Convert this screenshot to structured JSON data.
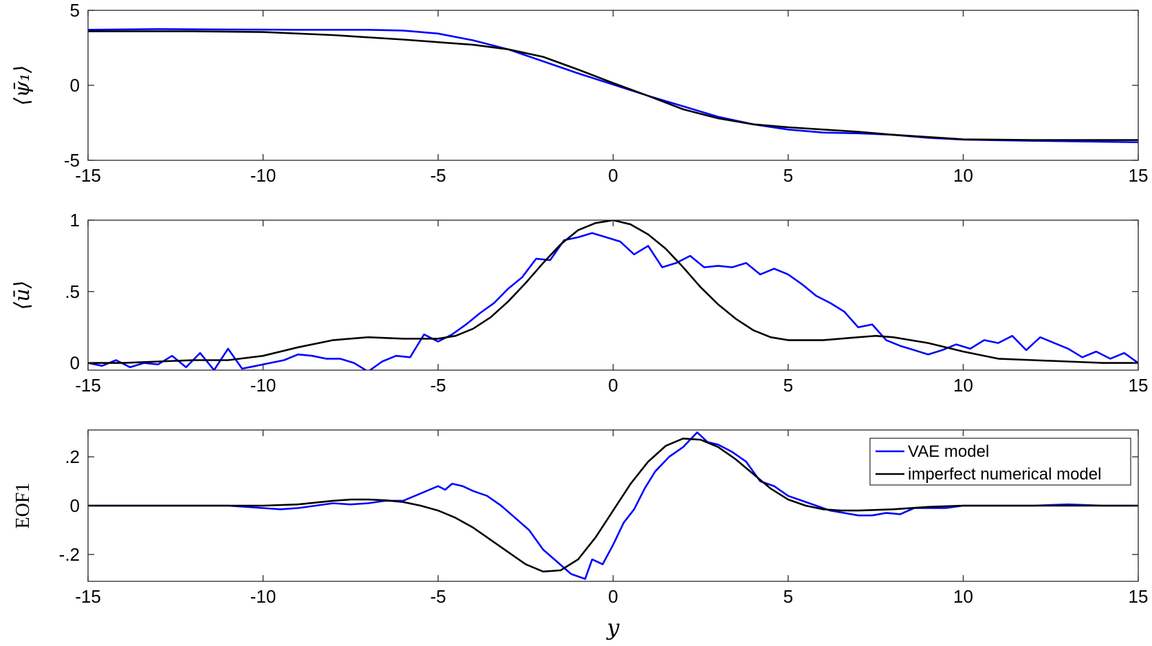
{
  "chart_data": [
    {
      "type": "line",
      "ylabel": "⟨ψ̄₁⟩",
      "xlabel": "",
      "xlim": [
        -15,
        15
      ],
      "ylim": [
        -5,
        5
      ],
      "xticks": [
        -15,
        -10,
        -5,
        0,
        5,
        10,
        15
      ],
      "yticks": [
        -5,
        0,
        5
      ],
      "grid": false,
      "series": [
        {
          "name": "VAE model",
          "color": "#0000ff",
          "x": [
            -15,
            -13,
            -11,
            -9,
            -7,
            -6,
            -5,
            -4,
            -3,
            -2,
            -1,
            0,
            1,
            2,
            3,
            4,
            5,
            6,
            7,
            8,
            9,
            10,
            12,
            15
          ],
          "y": [
            3.7,
            3.75,
            3.72,
            3.7,
            3.7,
            3.65,
            3.45,
            3.0,
            2.4,
            1.6,
            0.8,
            0.05,
            -0.7,
            -1.4,
            -2.1,
            -2.6,
            -2.95,
            -3.15,
            -3.2,
            -3.3,
            -3.5,
            -3.62,
            -3.7,
            -3.8
          ]
        },
        {
          "name": "imperfect numerical model",
          "color": "#000000",
          "x": [
            -15,
            -12,
            -10,
            -8,
            -6,
            -4,
            -3,
            -2,
            -1,
            0,
            1,
            2,
            3,
            4,
            5,
            6,
            7,
            8,
            9,
            10,
            12,
            15
          ],
          "y": [
            3.6,
            3.6,
            3.55,
            3.35,
            3.05,
            2.7,
            2.4,
            1.9,
            1.05,
            0.15,
            -0.7,
            -1.6,
            -2.2,
            -2.6,
            -2.8,
            -2.95,
            -3.1,
            -3.3,
            -3.45,
            -3.6,
            -3.65,
            -3.65
          ]
        }
      ]
    },
    {
      "type": "line",
      "ylabel": "⟨ū⟩",
      "xlabel": "",
      "xlim": [
        -15,
        15
      ],
      "ylim": [
        -0.05,
        1.0
      ],
      "xticks": [
        -15,
        -10,
        -5,
        0,
        5,
        10,
        15
      ],
      "yticks": [
        0,
        0.5,
        1
      ],
      "grid": false,
      "series": [
        {
          "name": "VAE model",
          "color": "#0000ff",
          "x": [
            -15,
            -14.6,
            -14.2,
            -13.8,
            -13.4,
            -13,
            -12.6,
            -12.2,
            -11.8,
            -11.4,
            -11,
            -10.6,
            -10.2,
            -9.8,
            -9.4,
            -9,
            -8.6,
            -8.2,
            -7.8,
            -7.4,
            -7,
            -6.6,
            -6.2,
            -5.8,
            -5.4,
            -5,
            -4.6,
            -4.2,
            -3.8,
            -3.4,
            -3,
            -2.6,
            -2.2,
            -1.8,
            -1.4,
            -1,
            -0.6,
            -0.2,
            0.2,
            0.6,
            1,
            1.4,
            1.8,
            2.2,
            2.6,
            3,
            3.4,
            3.8,
            4.2,
            4.6,
            5,
            5.4,
            5.8,
            6.2,
            6.6,
            7,
            7.4,
            7.8,
            8.2,
            8.6,
            9,
            9.4,
            9.8,
            10.2,
            10.6,
            11,
            11.4,
            11.8,
            12.2,
            12.6,
            13,
            13.4,
            13.8,
            14.2,
            14.6,
            15
          ],
          "y": [
            0.0,
            -0.02,
            0.02,
            -0.03,
            0.0,
            -0.01,
            0.05,
            -0.03,
            0.07,
            -0.05,
            0.1,
            -0.04,
            -0.02,
            0.0,
            0.02,
            0.06,
            0.05,
            0.03,
            0.03,
            0.0,
            -0.06,
            0.01,
            0.05,
            0.04,
            0.2,
            0.15,
            0.2,
            0.27,
            0.35,
            0.42,
            0.52,
            0.6,
            0.73,
            0.72,
            0.86,
            0.88,
            0.91,
            0.88,
            0.85,
            0.76,
            0.82,
            0.67,
            0.7,
            0.75,
            0.67,
            0.68,
            0.67,
            0.7,
            0.62,
            0.66,
            0.62,
            0.55,
            0.47,
            0.42,
            0.36,
            0.25,
            0.27,
            0.16,
            0.12,
            0.09,
            0.06,
            0.09,
            0.13,
            0.1,
            0.16,
            0.14,
            0.19,
            0.09,
            0.18,
            0.14,
            0.1,
            0.04,
            0.08,
            0.03,
            0.07,
            0.0
          ]
        },
        {
          "name": "imperfect numerical model",
          "color": "#000000",
          "x": [
            -15,
            -14,
            -13,
            -12,
            -11,
            -10,
            -9,
            -8,
            -7,
            -6,
            -5,
            -4.5,
            -4,
            -3.5,
            -3,
            -2.5,
            -2,
            -1.5,
            -1,
            -0.5,
            0,
            0.5,
            1,
            1.5,
            2,
            2.5,
            3,
            3.5,
            4,
            4.5,
            5,
            6,
            7,
            7.5,
            8,
            9,
            10,
            11,
            12,
            13,
            14,
            15
          ],
          "y": [
            0.0,
            0.0,
            0.01,
            0.02,
            0.02,
            0.05,
            0.11,
            0.16,
            0.18,
            0.17,
            0.17,
            0.19,
            0.24,
            0.32,
            0.43,
            0.56,
            0.7,
            0.83,
            0.93,
            0.98,
            1.0,
            0.97,
            0.9,
            0.8,
            0.67,
            0.53,
            0.41,
            0.31,
            0.23,
            0.18,
            0.16,
            0.16,
            0.18,
            0.19,
            0.18,
            0.14,
            0.08,
            0.03,
            0.02,
            0.01,
            0.0,
            0.0
          ]
        }
      ]
    },
    {
      "type": "line",
      "ylabel": "EOF1",
      "xlabel": "y",
      "xlim": [
        -15,
        15
      ],
      "ylim": [
        -0.31,
        0.31
      ],
      "xticks": [
        -15,
        -10,
        -5,
        0,
        5,
        10,
        15
      ],
      "yticks": [
        -0.2,
        0,
        0.2
      ],
      "grid": false,
      "legend": "top-right",
      "series": [
        {
          "name": "VAE model",
          "color": "#0000ff",
          "x": [
            -15,
            -14,
            -13,
            -12,
            -11,
            -10,
            -9.5,
            -9,
            -8.5,
            -8,
            -7.5,
            -7,
            -6.5,
            -6,
            -5.5,
            -5,
            -4.8,
            -4.6,
            -4.3,
            -4,
            -3.6,
            -3.2,
            -2.8,
            -2.4,
            -2,
            -1.6,
            -1.2,
            -0.8,
            -0.6,
            -0.3,
            0,
            0.3,
            0.6,
            0.9,
            1.2,
            1.6,
            2.0,
            2.4,
            2.7,
            3.0,
            3.4,
            3.8,
            4.2,
            4.6,
            5.0,
            5.4,
            5.8,
            6.2,
            6.6,
            7.0,
            7.4,
            7.8,
            8.2,
            8.6,
            9,
            9.5,
            10,
            11,
            12,
            13,
            14,
            15
          ],
          "y": [
            0.0,
            0.0,
            0.0,
            0.0,
            0.0,
            -0.01,
            -0.015,
            -0.01,
            0.0,
            0.01,
            0.005,
            0.01,
            0.02,
            0.02,
            0.05,
            0.08,
            0.065,
            0.09,
            0.08,
            0.06,
            0.04,
            0.0,
            -0.05,
            -0.1,
            -0.18,
            -0.23,
            -0.28,
            -0.3,
            -0.22,
            -0.24,
            -0.16,
            -0.07,
            -0.015,
            0.07,
            0.14,
            0.2,
            0.24,
            0.3,
            0.26,
            0.25,
            0.22,
            0.18,
            0.1,
            0.08,
            0.04,
            0.02,
            0.0,
            -0.02,
            -0.03,
            -0.04,
            -0.04,
            -0.03,
            -0.035,
            -0.01,
            -0.01,
            -0.01,
            0.0,
            0.0,
            0.0,
            0.005,
            0.0,
            0.0
          ]
        },
        {
          "name": "imperfect numerical model",
          "color": "#000000",
          "x": [
            -15,
            -13,
            -11,
            -10,
            -9,
            -8,
            -7.5,
            -7,
            -6.5,
            -6,
            -5.5,
            -5,
            -4.5,
            -4,
            -3.5,
            -3,
            -2.5,
            -2,
            -1.5,
            -1,
            -0.5,
            0,
            0.5,
            1,
            1.5,
            2,
            2.5,
            3,
            3.5,
            4,
            4.5,
            5,
            5.5,
            6,
            6.5,
            7,
            8,
            9,
            10,
            11,
            13,
            15
          ],
          "y": [
            0.0,
            0.0,
            0.0,
            0.0,
            0.005,
            0.02,
            0.025,
            0.025,
            0.022,
            0.015,
            0.0,
            -0.02,
            -0.05,
            -0.09,
            -0.14,
            -0.19,
            -0.24,
            -0.27,
            -0.265,
            -0.22,
            -0.13,
            -0.02,
            0.09,
            0.18,
            0.245,
            0.275,
            0.27,
            0.24,
            0.19,
            0.13,
            0.07,
            0.025,
            0.0,
            -0.015,
            -0.02,
            -0.02,
            -0.015,
            -0.005,
            0.0,
            0.0,
            0.0,
            0.0
          ]
        }
      ]
    }
  ]
}
